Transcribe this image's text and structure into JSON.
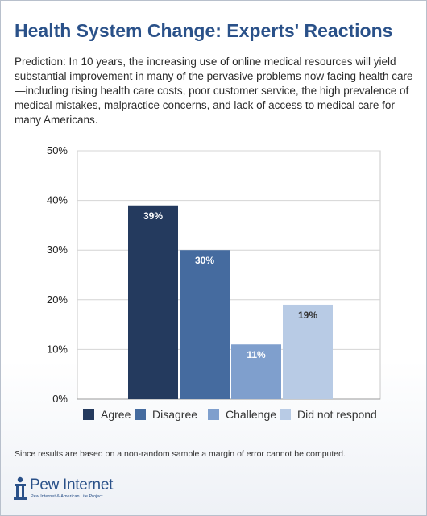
{
  "header": {
    "title": "Health System Change: Experts' Reactions",
    "description": "Prediction: In 10 years, the increasing use of online medical resources will yield substantial improvement in many of the pervasive problems now facing health care—including rising health care costs, poor customer service, the high prevalence of medical mistakes, malpractice concerns, and lack of access to medical care for many Americans."
  },
  "chart_data": {
    "type": "bar",
    "categories": [
      "Agree",
      "Disagree",
      "Challenge",
      "Did not respond"
    ],
    "values": [
      39,
      30,
      11,
      19
    ],
    "data_labels": [
      "39%",
      "30%",
      "11%",
      "19%"
    ],
    "colors": [
      "#243a5e",
      "#456b9f",
      "#7f9fcd",
      "#b8cbe5"
    ],
    "label_colors": [
      "#ffffff",
      "#ffffff",
      "#ffffff",
      "#333333"
    ],
    "ylim": [
      0,
      50
    ],
    "yticks": [
      0,
      10,
      20,
      30,
      40,
      50
    ],
    "ytick_labels": [
      "0%",
      "10%",
      "20%",
      "30%",
      "40%",
      "50%"
    ],
    "grid": true,
    "legend": "bottom",
    "xlabel": "",
    "ylabel": ""
  },
  "footer": {
    "note": "Since results are based on a non-random sample a margin of error cannot be computed.",
    "logo_name": "Pew Internet",
    "logo_sub": "Pew Internet & American Life Project",
    "logo_color": "#2a5189"
  }
}
